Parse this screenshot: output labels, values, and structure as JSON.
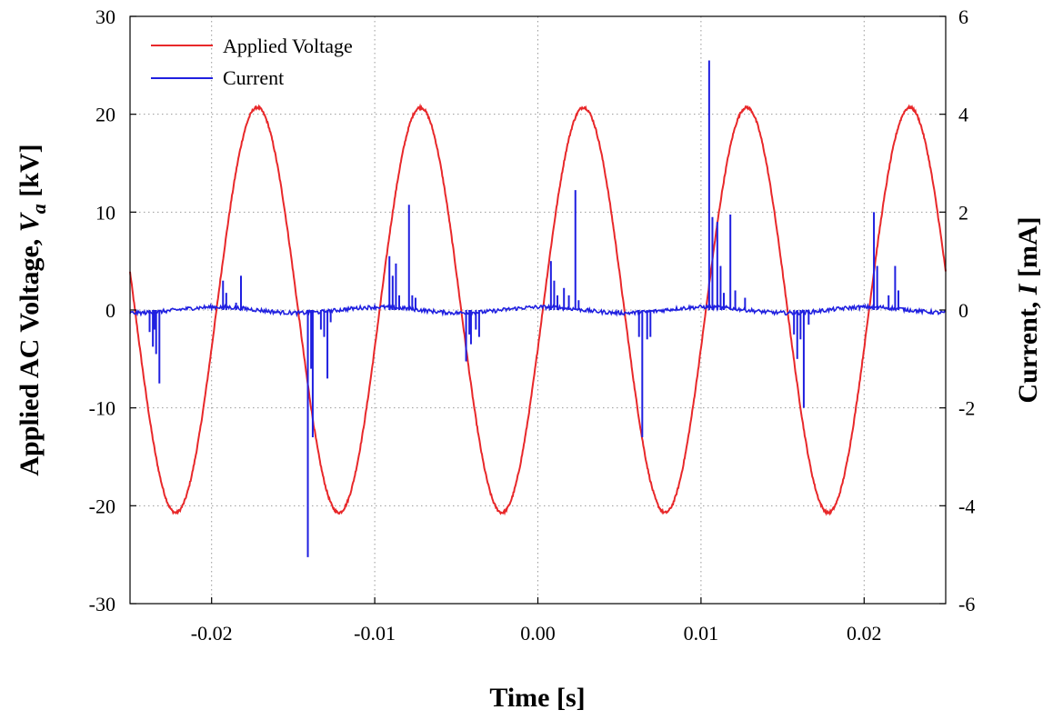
{
  "chart_data": {
    "type": "line",
    "xlabel": "Time [s]",
    "ylabel_left": {
      "main": "Applied AC Voltage, ",
      "var": "V",
      "sub": "a",
      "unit": " [kV]"
    },
    "ylabel_right": {
      "main": "Current, ",
      "var": "I",
      "unit": " [mA]"
    },
    "xlim": [
      -0.025,
      0.025
    ],
    "ylim_left": [
      -30,
      30
    ],
    "ylim_right": [
      -6,
      6
    ],
    "x_ticks": [
      -0.02,
      -0.01,
      0.0,
      0.01,
      0.02
    ],
    "x_tick_labels": [
      "-0.02",
      "-0.01",
      "0.00",
      "0.01",
      "0.02"
    ],
    "y_left_ticks": [
      -30,
      -20,
      -10,
      0,
      10,
      20,
      30
    ],
    "y_left_tick_labels": [
      "-30",
      "-20",
      "-10",
      "0",
      "10",
      "20",
      "30"
    ],
    "y_right_ticks": [
      -6,
      -4,
      -2,
      0,
      2,
      4,
      6
    ],
    "y_right_tick_labels": [
      "-6",
      "-4",
      "-2",
      "0",
      "2",
      "4",
      "6"
    ],
    "grid": true,
    "legend_position": "top-left",
    "series": [
      {
        "name": "Applied Voltage",
        "color": "#e8282a",
        "axis": "left",
        "sine": {
          "amplitude_kv": 20.7,
          "frequency_hz": 100,
          "peak_time_s": 0.0028
        }
      },
      {
        "name": "Current",
        "color": "#1f1fe0",
        "axis": "right",
        "baseline_mA": 0.0,
        "pulses": [
          [
            -0.0238,
            -0.45
          ],
          [
            -0.0236,
            -0.75
          ],
          [
            -0.0234,
            -0.9
          ],
          [
            -0.0232,
            -1.5
          ],
          [
            -0.0235,
            -0.4
          ],
          [
            -0.0193,
            0.6
          ],
          [
            -0.0191,
            0.35
          ],
          [
            -0.0182,
            0.7
          ],
          [
            -0.0185,
            0.15
          ],
          [
            -0.0141,
            -5.05
          ],
          [
            -0.0139,
            -1.2
          ],
          [
            -0.0138,
            -2.6
          ],
          [
            -0.0133,
            -0.4
          ],
          [
            -0.0131,
            -0.55
          ],
          [
            -0.0129,
            -1.4
          ],
          [
            -0.0127,
            -0.25
          ],
          [
            -0.0091,
            1.1
          ],
          [
            -0.0089,
            0.7
          ],
          [
            -0.0087,
            0.95
          ],
          [
            -0.0085,
            0.3
          ],
          [
            -0.0079,
            2.15
          ],
          [
            -0.0077,
            0.3
          ],
          [
            -0.0075,
            0.25
          ],
          [
            -0.0044,
            -1.05
          ],
          [
            -0.0042,
            -0.5
          ],
          [
            -0.0041,
            -0.7
          ],
          [
            -0.0038,
            -0.4
          ],
          [
            -0.0036,
            -0.55
          ],
          [
            0.0008,
            1.0
          ],
          [
            0.001,
            0.6
          ],
          [
            0.0012,
            0.3
          ],
          [
            0.0016,
            0.45
          ],
          [
            0.0019,
            0.3
          ],
          [
            0.0023,
            2.45
          ],
          [
            0.0025,
            0.2
          ],
          [
            0.0062,
            -0.55
          ],
          [
            0.0064,
            -2.6
          ],
          [
            0.0067,
            -0.6
          ],
          [
            0.0069,
            -0.55
          ],
          [
            0.0105,
            5.1
          ],
          [
            0.0107,
            1.9
          ],
          [
            0.011,
            1.8
          ],
          [
            0.0112,
            0.9
          ],
          [
            0.0114,
            0.35
          ],
          [
            0.0118,
            1.95
          ],
          [
            0.0121,
            0.4
          ],
          [
            0.0127,
            0.25
          ],
          [
            0.0157,
            -0.5
          ],
          [
            0.0159,
            -1.0
          ],
          [
            0.0161,
            -0.6
          ],
          [
            0.0163,
            -2.0
          ],
          [
            0.0166,
            -0.3
          ],
          [
            0.0206,
            2.0
          ],
          [
            0.0208,
            0.9
          ],
          [
            0.0215,
            0.3
          ],
          [
            0.0219,
            0.9
          ],
          [
            0.0221,
            0.4
          ]
        ]
      }
    ]
  }
}
